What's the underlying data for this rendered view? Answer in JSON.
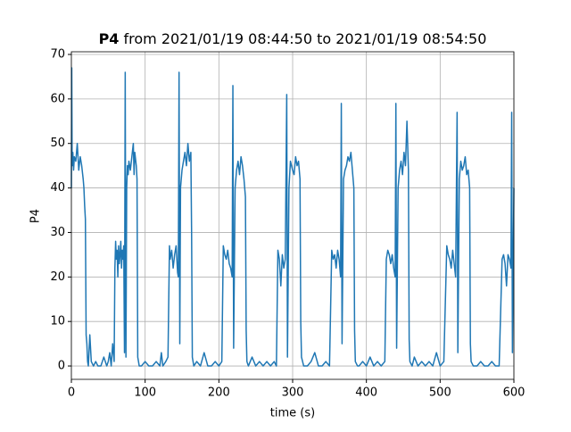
{
  "chart_data": {
    "type": "line",
    "title": {
      "bold": "P4",
      "text": "from 2021/01/19 08:44:50 to 2021/01/19 08:54:50"
    },
    "xlabel": "time (s)",
    "ylabel": "P4",
    "xlim": [
      0,
      600
    ],
    "xticks": [
      0,
      100,
      200,
      300,
      400,
      500,
      600
    ],
    "ylim": [
      -3.0,
      70.6
    ],
    "yticks": [
      0,
      10,
      20,
      30,
      40,
      50,
      60,
      70
    ],
    "grid": true,
    "color": "#1f77b4",
    "x": [
      0,
      0.5,
      1,
      2,
      3,
      4,
      6,
      8,
      10,
      12,
      14,
      16,
      17,
      18,
      19,
      20,
      21,
      22,
      23,
      25,
      27,
      30,
      33,
      36,
      40,
      44,
      48,
      50,
      52,
      54,
      56,
      58,
      59,
      60,
      61,
      62,
      63,
      64,
      65,
      66,
      67,
      68,
      69,
      70,
      71,
      72,
      73,
      74,
      75,
      76,
      77,
      78,
      80,
      82,
      84,
      85,
      86,
      88,
      89,
      90,
      91,
      92,
      95,
      100,
      105,
      110,
      115,
      120,
      122,
      124,
      128,
      131,
      133,
      134,
      136,
      138,
      140,
      142,
      144,
      145,
      146,
      147,
      148,
      150,
      152,
      154,
      156,
      158,
      160,
      162,
      163,
      164,
      166,
      170,
      175,
      180,
      185,
      190,
      195,
      200,
      204,
      206,
      208,
      210,
      212,
      214,
      216,
      218,
      219,
      220,
      222,
      224,
      226,
      228,
      230,
      232,
      234,
      236,
      237,
      238,
      240,
      245,
      250,
      255,
      260,
      265,
      270,
      275,
      278,
      280,
      282,
      284,
      286,
      288,
      290,
      292,
      293,
      295,
      297,
      300,
      302,
      304,
      306,
      308,
      310,
      311,
      312,
      315,
      320,
      325,
      330,
      335,
      340,
      345,
      350,
      353,
      355,
      357,
      359,
      361,
      363,
      365,
      366,
      367,
      369,
      371,
      373,
      375,
      377,
      379,
      381,
      383,
      384,
      385,
      388,
      390,
      395,
      400,
      405,
      410,
      415,
      420,
      425,
      427,
      429,
      431,
      433,
      435,
      437,
      439,
      440,
      441,
      443,
      445,
      447,
      449,
      451,
      453,
      455,
      457,
      458,
      459,
      462,
      465,
      470,
      475,
      480,
      485,
      490,
      495,
      500,
      505,
      509,
      511,
      513,
      515,
      517,
      519,
      521,
      523,
      524,
      526,
      528,
      530,
      532,
      534,
      536,
      538,
      540,
      541,
      542,
      545,
      550,
      555,
      560,
      565,
      570,
      575,
      580,
      584,
      586,
      588,
      590,
      592,
      594,
      596,
      597,
      598,
      600
    ],
    "values": [
      40,
      67,
      45,
      48,
      44,
      47,
      46,
      50,
      44,
      47,
      45,
      42,
      40,
      36,
      33,
      7,
      5,
      1,
      0,
      7,
      1,
      0,
      1,
      0,
      0,
      2,
      0,
      1,
      3,
      0,
      5,
      1,
      22,
      28,
      24,
      26,
      20,
      27,
      23,
      25,
      28,
      22,
      26,
      24,
      27,
      3,
      66,
      2,
      40,
      45,
      43,
      46,
      44,
      47,
      50,
      43,
      48,
      45,
      42,
      2,
      1,
      0,
      0,
      1,
      0,
      0,
      1,
      0,
      3,
      0,
      1,
      2,
      27,
      24,
      26,
      22,
      25,
      27,
      21,
      20,
      66,
      5,
      40,
      44,
      46,
      48,
      45,
      50,
      46,
      48,
      30,
      2,
      0,
      1,
      0,
      3,
      0,
      0,
      1,
      0,
      1,
      27,
      25,
      24,
      26,
      23,
      22,
      20,
      63,
      4,
      40,
      44,
      46,
      43,
      47,
      45,
      42,
      38,
      8,
      1,
      0,
      2,
      0,
      1,
      0,
      1,
      0,
      1,
      0,
      26,
      24,
      18,
      25,
      22,
      24,
      61,
      2,
      40,
      46,
      44,
      43,
      47,
      45,
      46,
      42,
      10,
      2,
      0,
      0,
      1,
      3,
      0,
      0,
      1,
      0,
      26,
      24,
      25,
      22,
      26,
      24,
      20,
      59,
      5,
      42,
      44,
      45,
      47,
      46,
      48,
      44,
      40,
      8,
      1,
      0,
      0,
      1,
      0,
      2,
      0,
      1,
      0,
      1,
      24,
      26,
      25,
      23,
      25,
      22,
      20,
      59,
      4,
      40,
      44,
      46,
      43,
      48,
      45,
      55,
      44,
      6,
      1,
      0,
      2,
      0,
      1,
      0,
      1,
      0,
      3,
      0,
      1,
      27,
      25,
      24,
      22,
      26,
      23,
      20,
      57,
      3,
      42,
      46,
      44,
      45,
      47,
      43,
      44,
      40,
      5,
      1,
      0,
      0,
      1,
      0,
      0,
      1,
      0,
      0,
      24,
      25,
      23,
      18,
      25,
      24,
      22,
      57,
      3,
      40
    ]
  }
}
